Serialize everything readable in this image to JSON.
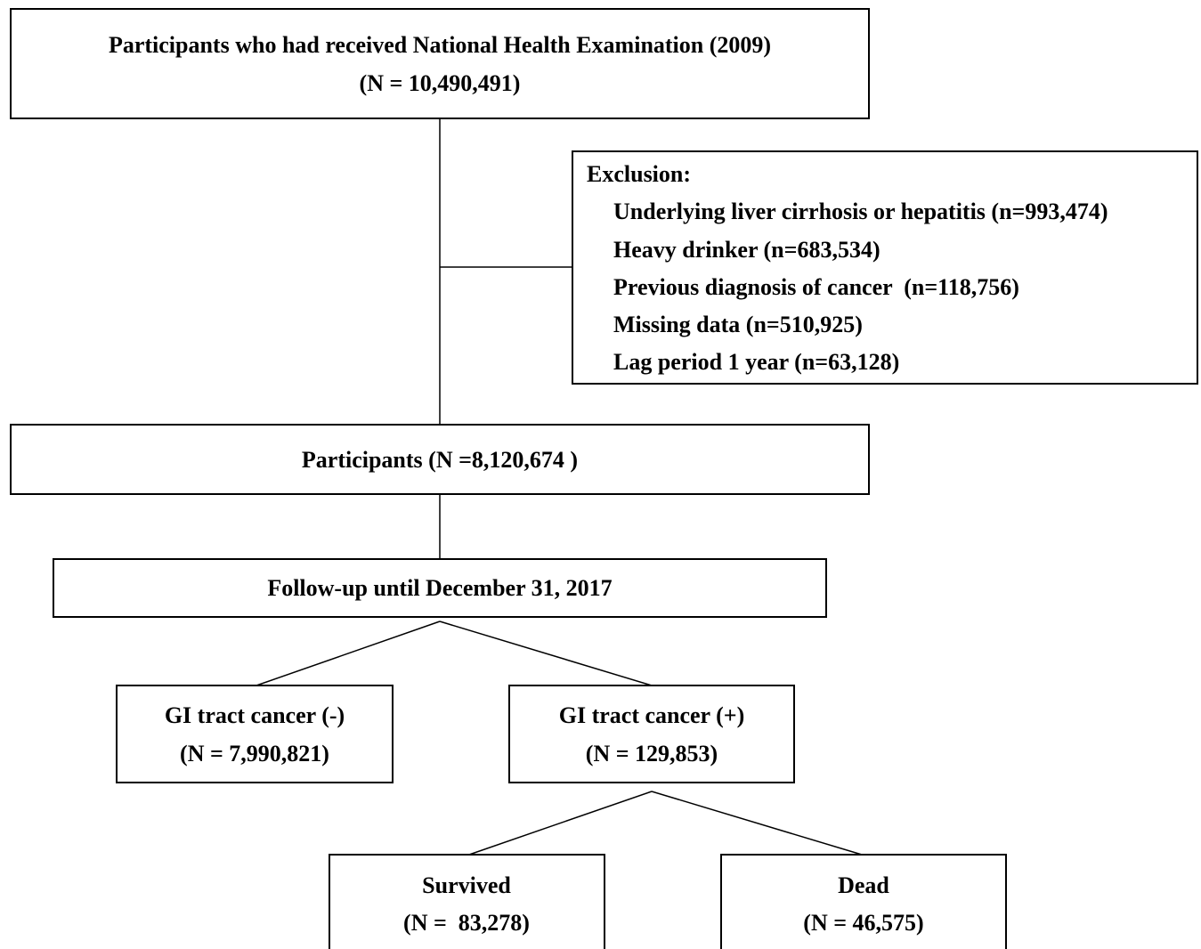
{
  "nodes": [
    {
      "lines": [
        "Participants who had received National Health Examination (2009)",
        "(N = 10,490,491)"
      ]
    },
    {
      "lines": [
        "Participants (N =8,120,674 )"
      ]
    },
    {
      "lines": [
        "Follow-up until December 31, 2017"
      ]
    },
    {
      "lines": [
        "GI tract cancer (-)",
        "(N = 7,990,821)"
      ]
    },
    {
      "lines": [
        "GI tract cancer (+)",
        "(N = 129,853)"
      ]
    },
    {
      "lines": [
        "Survived",
        "(N =  83,278)"
      ]
    },
    {
      "lines": [
        "Dead",
        "(N = 46,575)"
      ]
    }
  ],
  "exclusion": {
    "title": "Exclusion:",
    "items": [
      "Underlying liver cirrhosis or hepatitis (n=993,474)",
      "Heavy drinker (n=683,534)",
      "Previous diagnosis of cancer  (n=118,756)",
      "Missing data (n=510,925)",
      "Lag period 1 year (n=63,128)"
    ]
  }
}
